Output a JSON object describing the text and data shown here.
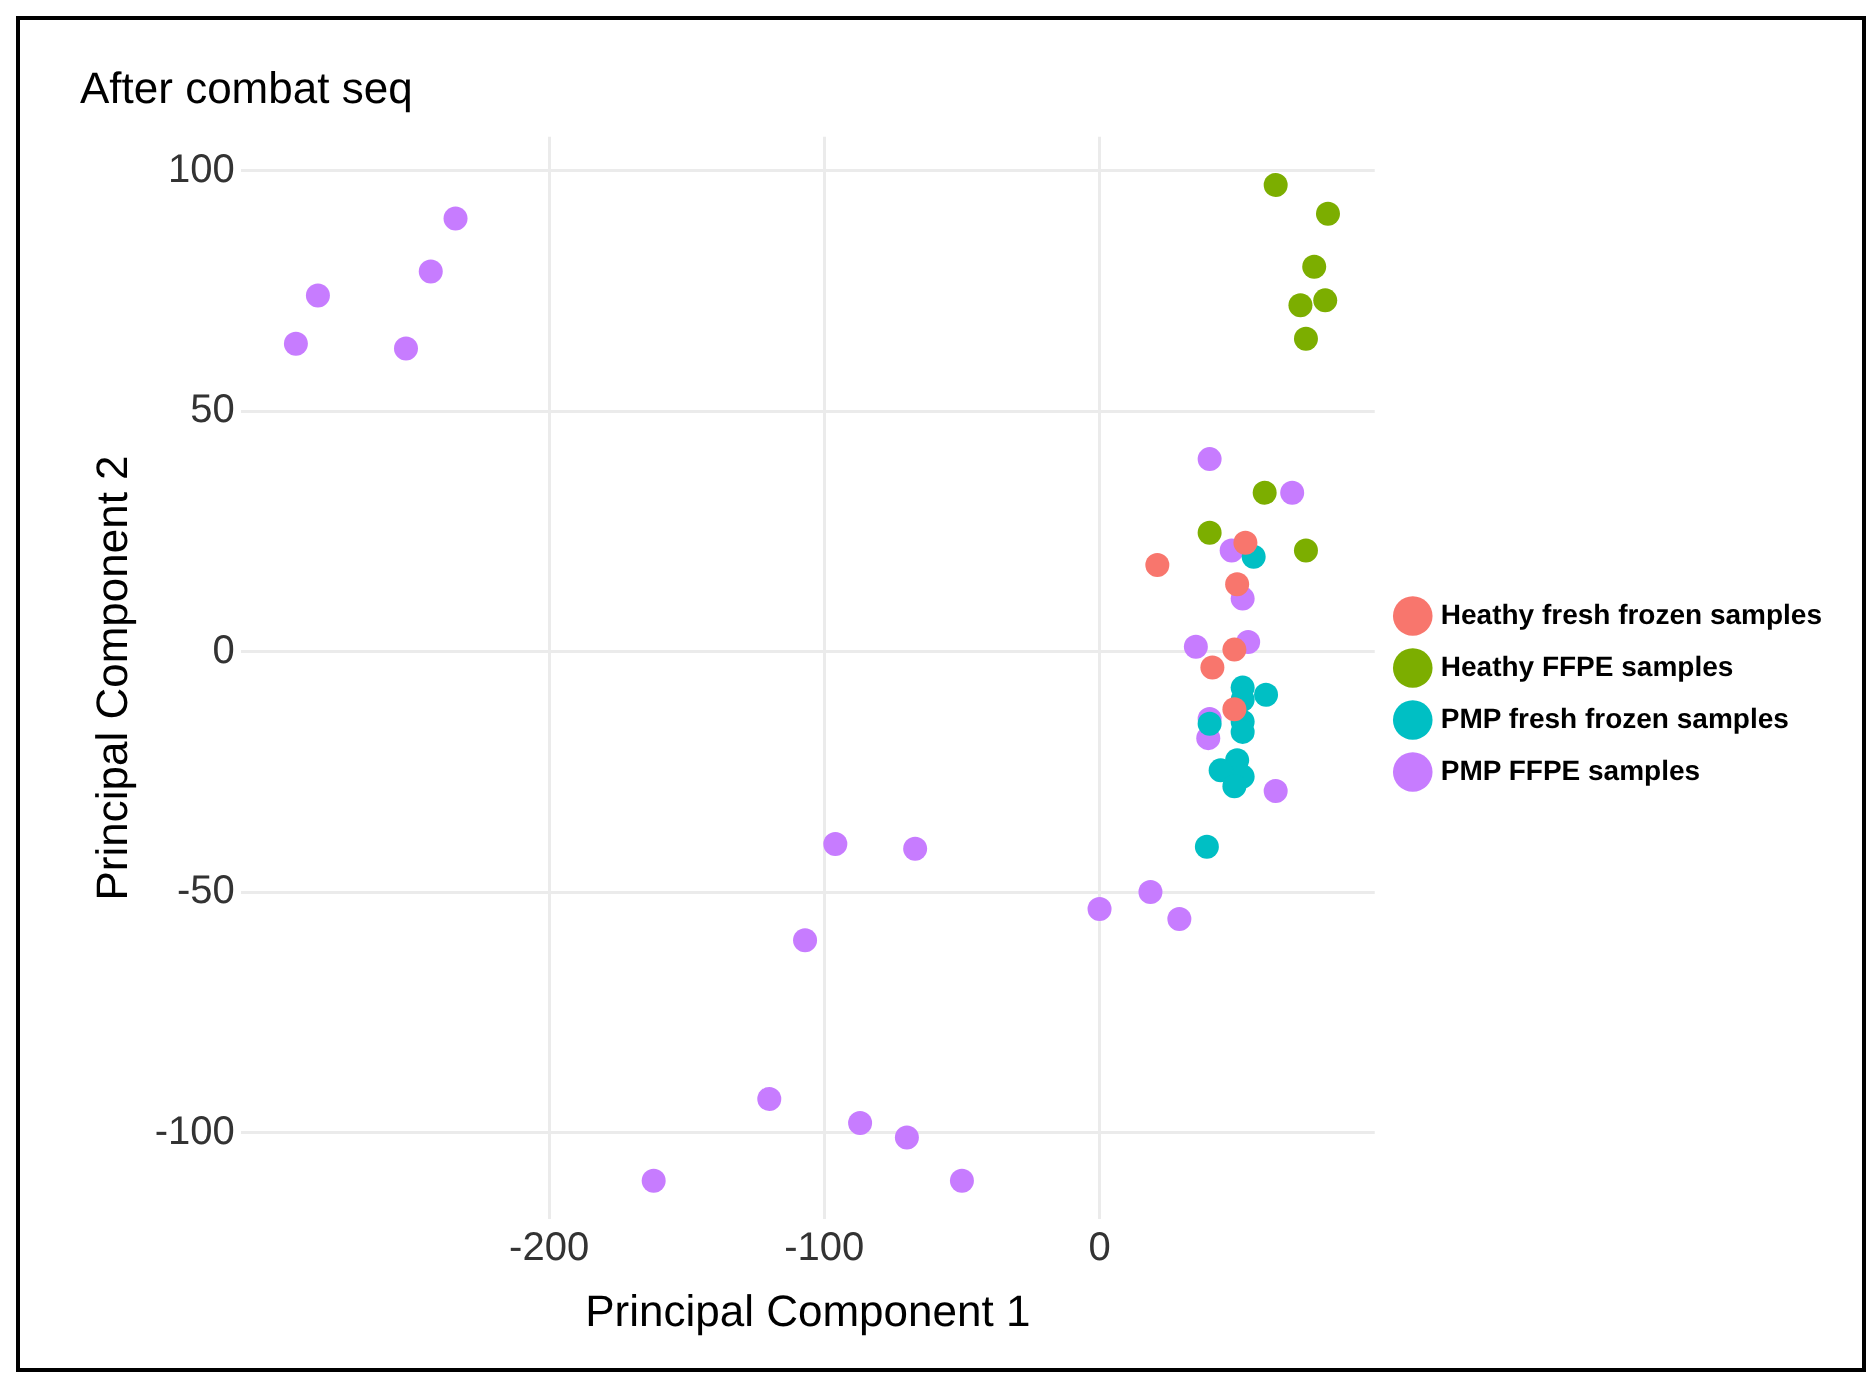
{
  "chart_data": {
    "type": "scatter",
    "title": "After combat seq",
    "xlabel": "Principal Component 1",
    "ylabel": "Principal Component 2",
    "xlim": [
      -312,
      100
    ],
    "xticks": [
      -200,
      -100,
      0
    ],
    "ylim": [
      -118,
      107
    ],
    "yticks": [
      -100,
      -50,
      0,
      50,
      100
    ],
    "grid": true,
    "legend": "right",
    "marker": "circle",
    "series": [
      {
        "name": "Heathy fresh frozen samples",
        "color": "#f8766d",
        "x": [
          53,
          21,
          50,
          49,
          41,
          49
        ],
        "values": [
          22.6,
          18,
          14,
          0.4,
          -3.3,
          -12
        ]
      },
      {
        "name": "Heathy FFPE samples",
        "color": "#7cae00",
        "x": [
          64,
          83,
          78,
          73,
          82,
          75,
          60,
          40,
          75
        ],
        "values": [
          97,
          91,
          80,
          72,
          73,
          65,
          33,
          24.7,
          21
        ]
      },
      {
        "name": "PMP fresh frozen samples",
        "color": "#00bfc4",
        "x": [
          56,
          52,
          60.5,
          52,
          52,
          52,
          40,
          50,
          44,
          52,
          49,
          39
        ],
        "values": [
          19.7,
          -7.5,
          -9,
          -10,
          -14.6,
          -16.7,
          -15,
          -22.6,
          -24.7,
          -26,
          -28,
          -40.6
        ]
      },
      {
        "name": "PMP FFPE samples",
        "color": "#c77cff",
        "x": [
          -234,
          -243,
          -284,
          -292,
          -252,
          -96,
          -67,
          -107,
          0,
          18.5,
          29,
          -120,
          -87,
          -70,
          -162,
          -50,
          40,
          70,
          48,
          52,
          35,
          54,
          40,
          39.5,
          64
        ],
        "values": [
          90,
          79,
          74,
          64,
          63,
          -40,
          -41,
          -60,
          -53.5,
          -50,
          -55.6,
          -93,
          -98,
          -101,
          -110,
          -110,
          40,
          33,
          21,
          11,
          1,
          2,
          -14,
          -18,
          -29
        ]
      }
    ]
  }
}
